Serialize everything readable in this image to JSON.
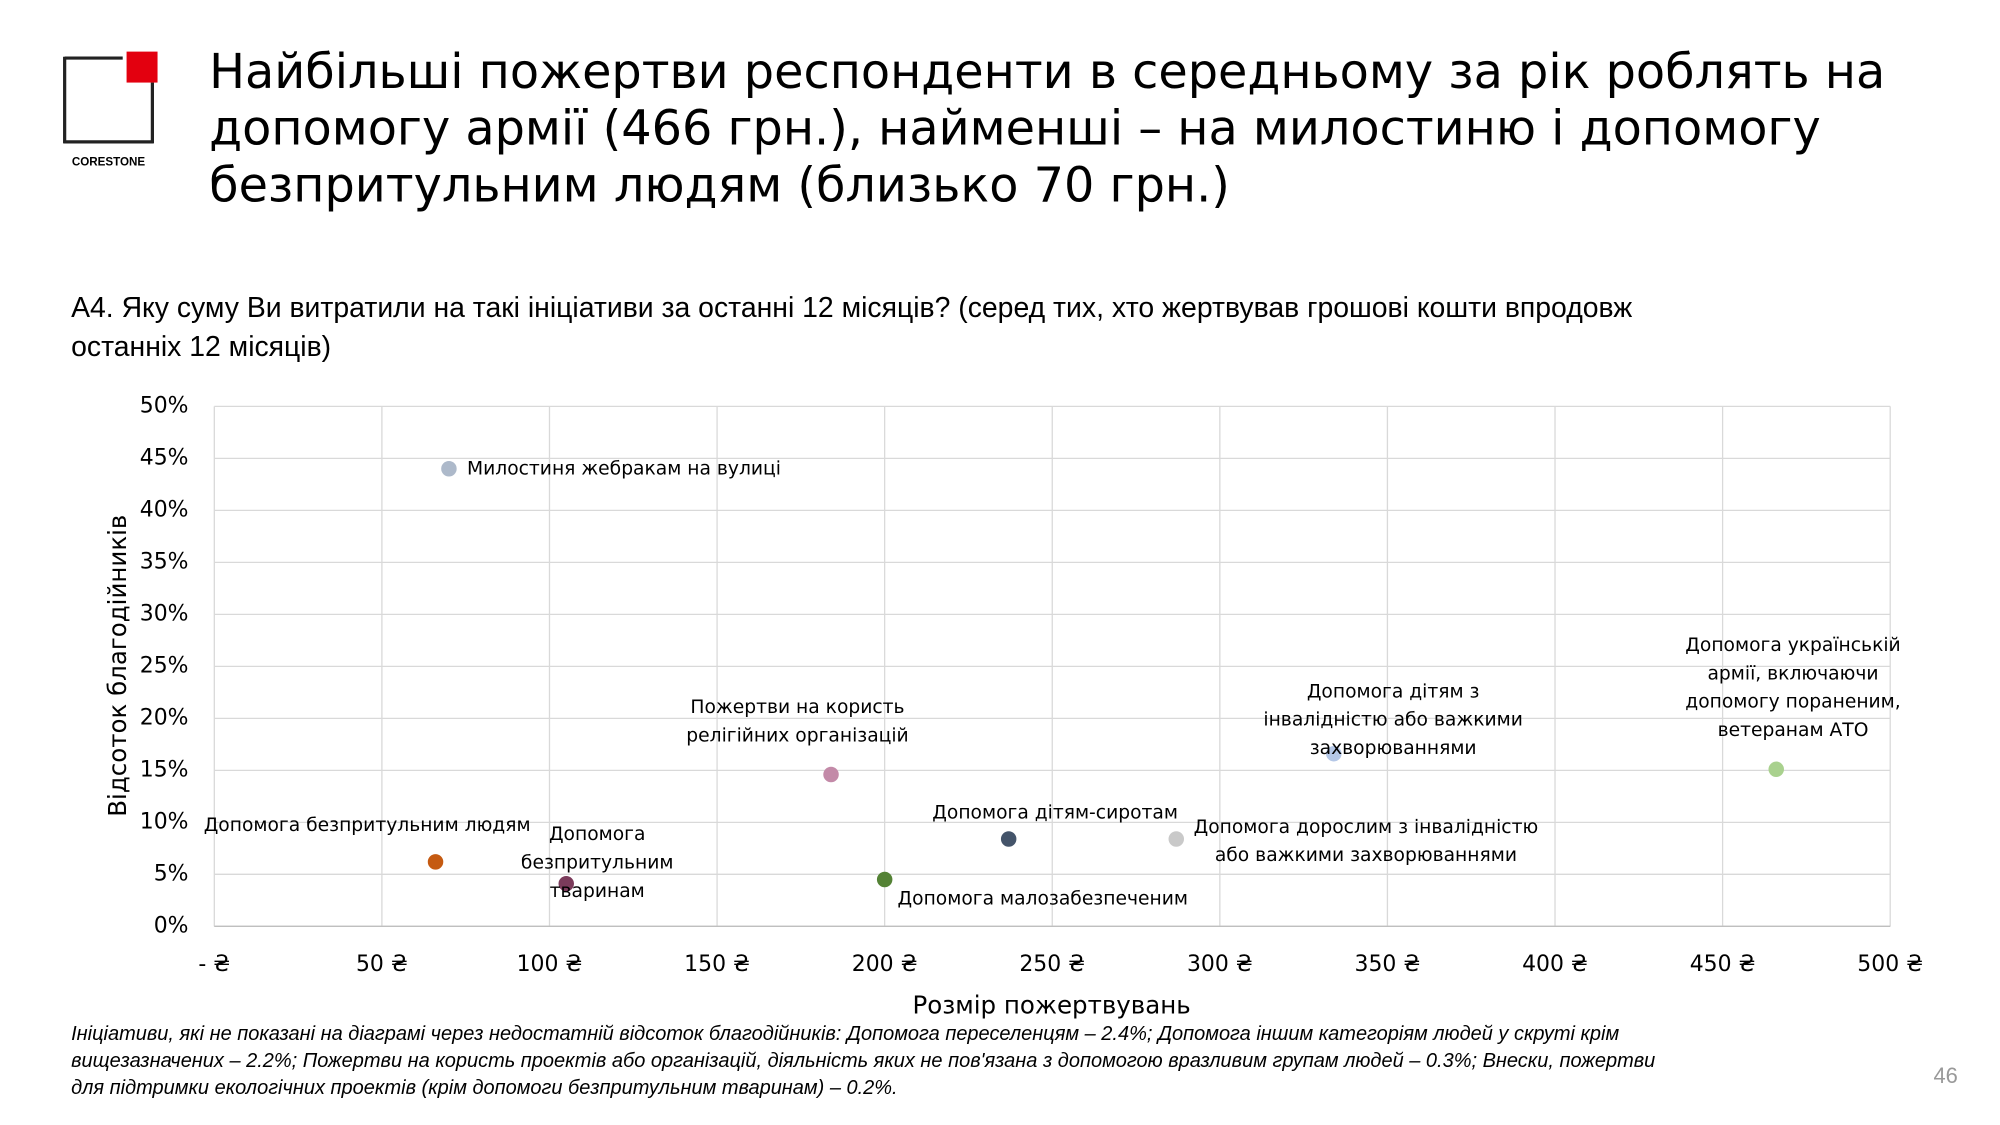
{
  "header": {
    "title_lines": [
      "Найбільші пожертви респонденти в середньому за рік роблять на",
      "допомогу армії (466 грн.), найменші – на милостиню і допомогу",
      "безпритульним людям (близько 70 грн.)"
    ],
    "logo": "CORESTONE"
  },
  "question_lines": [
    "А4. Яку суму Ви витратили на такі ініціативи за останні 12 місяців? (серед тих, хто жертвував грошові кошти впродовж",
    "останніх 12 місяців)"
  ],
  "chart_data": {
    "type": "scatter",
    "x_label": "Розмір пожертвувань",
    "y_label": "Відсоток благодійників",
    "xlim": [
      0,
      500
    ],
    "xticks": [
      {
        "value": 0,
        "label": "- ₴"
      },
      {
        "value": 50,
        "label": "50 ₴"
      },
      {
        "value": 100,
        "label": "100 ₴"
      },
      {
        "value": 150,
        "label": "150 ₴"
      },
      {
        "value": 200,
        "label": "200 ₴"
      },
      {
        "value": 250,
        "label": "250 ₴"
      },
      {
        "value": 300,
        "label": "300 ₴"
      },
      {
        "value": 350,
        "label": "350 ₴"
      },
      {
        "value": 400,
        "label": "400 ₴"
      },
      {
        "value": 450,
        "label": "450 ₴"
      },
      {
        "value": 500,
        "label": "500 ₴"
      }
    ],
    "ylim": [
      0,
      50
    ],
    "yticks": [
      {
        "value": 0,
        "label": "0%"
      },
      {
        "value": 5,
        "label": "5%"
      },
      {
        "value": 10,
        "label": "10%"
      },
      {
        "value": 15,
        "label": "15%"
      },
      {
        "value": 20,
        "label": "20%"
      },
      {
        "value": 25,
        "label": "25%"
      },
      {
        "value": 30,
        "label": "30%"
      },
      {
        "value": 35,
        "label": "35%"
      },
      {
        "value": 40,
        "label": "40%"
      },
      {
        "value": 45,
        "label": "45%"
      },
      {
        "value": 50,
        "label": "50%"
      }
    ],
    "grid": true,
    "points": [
      {
        "label_lines": [
          "Милостиня жебракам на вулиці"
        ],
        "x": 70,
        "y": 44,
        "color": "#adb9ca"
      },
      {
        "label_lines": [
          "Допомога безпритульним людям"
        ],
        "x": 66,
        "y": 6.2,
        "color": "#c55a11"
      },
      {
        "label_lines": [
          "Допомога",
          "безпритульним",
          "тваринам"
        ],
        "x": 105,
        "y": 4.1,
        "color": "#7b3b5b"
      },
      {
        "label_lines": [
          "Пожертви на користь",
          "релігійних організацій"
        ],
        "x": 184,
        "y": 14.6,
        "color": "#c38aa8"
      },
      {
        "label_lines": [
          "Допомога малозабезпеченим"
        ],
        "x": 200,
        "y": 4.5,
        "color": "#548235"
      },
      {
        "label_lines": [
          "Допомога дітям-сиротам"
        ],
        "x": 237,
        "y": 8.4,
        "color": "#44546a"
      },
      {
        "label_lines": [
          "Допомога дорослим з інвалідністю",
          "або важкими захворюваннями"
        ],
        "x": 287,
        "y": 8.4,
        "color": "#c9c9c9"
      },
      {
        "label_lines": [
          "Допомога дітям з",
          "інвалідністю або важкими",
          "захворюваннями"
        ],
        "x": 334,
        "y": 16.6,
        "color": "#b4c7e7"
      },
      {
        "label_lines": [
          "Допомога українській",
          "армії, включаючи",
          "допомогу пораненим,",
          "ветеранам АТО"
        ],
        "x": 466,
        "y": 15.1,
        "color": "#a9d18e"
      }
    ]
  },
  "footnote_lines": [
    "Ініціативи, які не показані на діаграмі через недостатній відсоток благодійників: Допомога переселенцям – 2.4%; Допомога іншим категоріям людей у скруті крім",
    "вищезазначених – 2.2%; Пожертви на користь проектів або організацій, діяльність яких не пов'язана з допомогою вразливим групам людей – 0.3%;  Внески, пожертви",
    "для підтримки екологічних проектів (крім допомоги безпритульним тваринам) – 0.2%."
  ],
  "page_number": "46"
}
